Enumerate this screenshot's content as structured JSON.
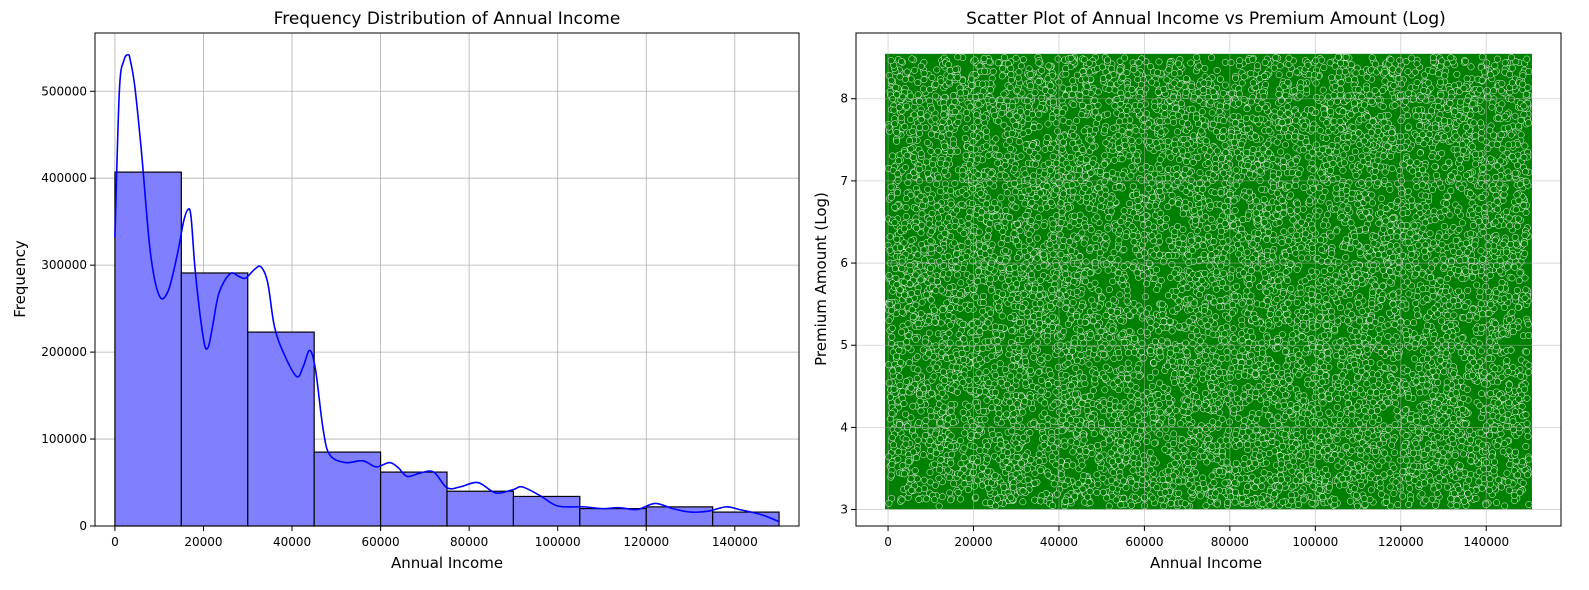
{
  "chart_data": [
    {
      "type": "bar",
      "subtype": "histogram-with-kde",
      "title": "Frequency Distribution of Annual Income",
      "xlabel": "Annual Income",
      "ylabel": "Frequency",
      "xlim": [
        -4500,
        154500
      ],
      "ylim": [
        0,
        567000
      ],
      "grid": true,
      "bar_color": "#8080ff",
      "bar_edge_color": "#000000",
      "kde_color": "#0000ff",
      "bins": [
        {
          "x0": 0,
          "x1": 15000,
          "count": 407000
        },
        {
          "x0": 15000,
          "x1": 30000,
          "count": 291000
        },
        {
          "x0": 30000,
          "x1": 45000,
          "count": 223000
        },
        {
          "x0": 45000,
          "x1": 60000,
          "count": 85000
        },
        {
          "x0": 60000,
          "x1": 75000,
          "count": 62000
        },
        {
          "x0": 75000,
          "x1": 90000,
          "count": 40000
        },
        {
          "x0": 90000,
          "x1": 105000,
          "count": 34000
        },
        {
          "x0": 105000,
          "x1": 120000,
          "count": 20000
        },
        {
          "x0": 120000,
          "x1": 135000,
          "count": 22000
        },
        {
          "x0": 135000,
          "x1": 150000,
          "count": 16000
        }
      ],
      "kde": {
        "x": [
          0,
          1000,
          2000,
          3000,
          3500,
          4500,
          6000,
          8000,
          10000,
          12000,
          14000,
          15500,
          16500,
          17200,
          18200,
          20000,
          21000,
          22000,
          23500,
          26000,
          28000,
          29500,
          31500,
          33000,
          34500,
          36000,
          38000,
          41000,
          42500,
          44000,
          45300,
          47000,
          48500,
          52000,
          56000,
          59000,
          62000,
          64000,
          66000,
          69000,
          72000,
          75000,
          78000,
          82000,
          86000,
          90000,
          92000,
          96000,
          100000,
          106000,
          110000,
          114000,
          118000,
          122000,
          126000,
          130000,
          134000,
          138000,
          141000,
          146000,
          150000
        ],
        "y": [
          332000,
          500000,
          535000,
          542000,
          535000,
          505000,
          430000,
          315000,
          265000,
          270000,
          310000,
          350000,
          364000,
          355000,
          290000,
          215000,
          205000,
          228000,
          268000,
          290000,
          287000,
          285000,
          295000,
          298000,
          280000,
          230000,
          200000,
          172000,
          183000,
          202000,
          180000,
          112000,
          82000,
          73000,
          75000,
          68000,
          73000,
          67000,
          57000,
          61000,
          62000,
          44000,
          45000,
          50000,
          38000,
          42000,
          45000,
          35000,
          23000,
          22000,
          20000,
          21000,
          19000,
          26000,
          20000,
          16000,
          17000,
          22000,
          19000,
          13000,
          5000
        ]
      },
      "x_ticks": [
        0,
        20000,
        40000,
        60000,
        80000,
        100000,
        120000,
        140000
      ],
      "y_ticks": [
        0,
        100000,
        200000,
        300000,
        400000,
        500000
      ]
    },
    {
      "type": "scatter",
      "title": "Scatter Plot of Annual Income vs Premium Amount (Log)",
      "xlabel": "Annual Income",
      "ylabel": "Premium Amount (Log)",
      "xlim": [
        -7500,
        157500
      ],
      "ylim": [
        2.8,
        8.8
      ],
      "grid": true,
      "point_color": "#008000",
      "point_edge_color": "#ffffff",
      "x_range": [
        0,
        149997
      ],
      "y_range": [
        3.04,
        8.51
      ],
      "x_ticks": [
        0,
        20000,
        40000,
        60000,
        80000,
        100000,
        120000,
        140000
      ],
      "y_ticks": [
        3,
        4,
        5,
        6,
        7,
        8
      ]
    }
  ]
}
